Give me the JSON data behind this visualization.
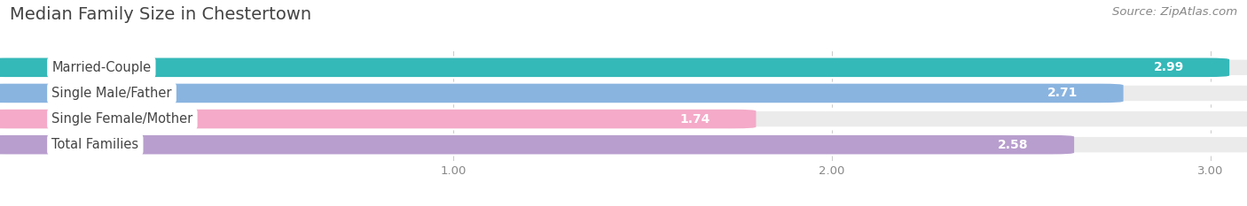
{
  "title": "Median Family Size in Chestertown",
  "source": "Source: ZipAtlas.com",
  "categories": [
    "Married-Couple",
    "Single Male/Father",
    "Single Female/Mother",
    "Total Families"
  ],
  "values": [
    2.99,
    2.71,
    1.74,
    2.58
  ],
  "bar_colors": [
    "#35b8b8",
    "#8ab4e0",
    "#f4aac8",
    "#b89ece"
  ],
  "xlim_left": -0.18,
  "xlim_right": 3.08,
  "xticks": [
    1.0,
    2.0,
    3.0
  ],
  "xtick_labels": [
    "1.00",
    "2.00",
    "3.00"
  ],
  "bar_height": 0.62,
  "bar_gap": 0.38,
  "title_fontsize": 14,
  "source_fontsize": 9.5,
  "label_fontsize": 10.5,
  "value_fontsize": 10,
  "background_color": "#ffffff",
  "bar_bg_color": "#ebebeb",
  "bar_border_color": "#ffffff",
  "label_text_color": "#444444",
  "value_text_color": "#ffffff",
  "grid_color": "#cccccc",
  "tick_color": "#888888"
}
